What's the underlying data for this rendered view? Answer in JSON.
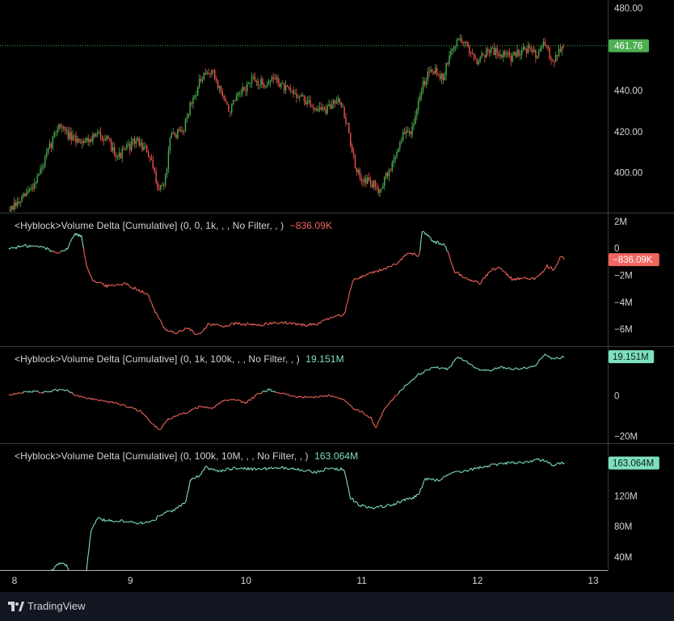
{
  "chart_data": [
    {
      "id": "price",
      "type": "candlestick",
      "title": "",
      "ylim": [
        381,
        484
      ],
      "yticks": [
        400,
        420,
        440,
        460,
        480
      ],
      "ytick_labels": [
        "400.00",
        "420.00",
        "440.00",
        "",
        "480.00"
      ],
      "last_value": 461.76,
      "last_label": "461.76",
      "x_start": 7.95,
      "x_end": 12.75,
      "path": [
        [
          7.95,
          381
        ],
        [
          8.05,
          386
        ],
        [
          8.15,
          393
        ],
        [
          8.25,
          404
        ],
        [
          8.38,
          424
        ],
        [
          8.5,
          416
        ],
        [
          8.62,
          416
        ],
        [
          8.75,
          419
        ],
        [
          8.9,
          408
        ],
        [
          9.05,
          416
        ],
        [
          9.15,
          410
        ],
        [
          9.25,
          392
        ],
        [
          9.3,
          396
        ],
        [
          9.35,
          418
        ],
        [
          9.45,
          420
        ],
        [
          9.5,
          430
        ],
        [
          9.6,
          444
        ],
        [
          9.7,
          450
        ],
        [
          9.78,
          440
        ],
        [
          9.85,
          430
        ],
        [
          9.95,
          438
        ],
        [
          10.05,
          445
        ],
        [
          10.15,
          443
        ],
        [
          10.25,
          446
        ],
        [
          10.35,
          440
        ],
        [
          10.45,
          438
        ],
        [
          10.55,
          433
        ],
        [
          10.7,
          430
        ],
        [
          10.8,
          438
        ],
        [
          10.88,
          422
        ],
        [
          10.95,
          400
        ],
        [
          11.05,
          396
        ],
        [
          11.15,
          392
        ],
        [
          11.25,
          402
        ],
        [
          11.35,
          418
        ],
        [
          11.45,
          422
        ],
        [
          11.52,
          442
        ],
        [
          11.6,
          452
        ],
        [
          11.7,
          446
        ],
        [
          11.78,
          460
        ],
        [
          11.85,
          466
        ],
        [
          11.9,
          462
        ],
        [
          12.0,
          455
        ],
        [
          12.1,
          460
        ],
        [
          12.2,
          458
        ],
        [
          12.3,
          456
        ],
        [
          12.4,
          461
        ],
        [
          12.5,
          458
        ],
        [
          12.58,
          462
        ],
        [
          12.65,
          455
        ],
        [
          12.72,
          460
        ],
        [
          12.75,
          461.76
        ]
      ],
      "up_color": "#4caf50",
      "down_color": "#ef5350"
    },
    {
      "id": "vd1",
      "type": "line",
      "legend": "<Hyblock>Volume Delta [Cumulative] (0, 0, 1k, , , No Filter, , )",
      "value_label": "−836.09K",
      "value_color": "#f2645e",
      "last_value": -0.836,
      "ylim": [
        -7.2,
        2.6
      ],
      "yticks": [
        2,
        0,
        -2,
        -4,
        -6
      ],
      "ytick_labels": [
        "2M",
        "0",
        "−2M",
        "−4M",
        "−6M"
      ],
      "baseline": -0.2,
      "x_start": 7.95,
      "x_end": 12.75,
      "path": [
        [
          7.95,
          0.0
        ],
        [
          8.1,
          0.2
        ],
        [
          8.25,
          0.1
        ],
        [
          8.35,
          -0.3
        ],
        [
          8.45,
          -0.1
        ],
        [
          8.52,
          1.1
        ],
        [
          8.58,
          0.9
        ],
        [
          8.62,
          -1.2
        ],
        [
          8.68,
          -2.4
        ],
        [
          8.8,
          -2.8
        ],
        [
          8.95,
          -2.6
        ],
        [
          9.05,
          -3.0
        ],
        [
          9.15,
          -3.4
        ],
        [
          9.22,
          -4.8
        ],
        [
          9.3,
          -6.0
        ],
        [
          9.4,
          -6.3
        ],
        [
          9.5,
          -5.9
        ],
        [
          9.58,
          -6.5
        ],
        [
          9.68,
          -5.6
        ],
        [
          9.8,
          -5.8
        ],
        [
          9.9,
          -5.6
        ],
        [
          10.1,
          -5.7
        ],
        [
          10.3,
          -5.5
        ],
        [
          10.5,
          -5.7
        ],
        [
          10.62,
          -5.6
        ],
        [
          10.75,
          -5.1
        ],
        [
          10.85,
          -4.9
        ],
        [
          10.92,
          -2.4
        ],
        [
          11.05,
          -1.9
        ],
        [
          11.2,
          -1.5
        ],
        [
          11.3,
          -1.2
        ],
        [
          11.4,
          -0.3
        ],
        [
          11.5,
          -0.6
        ],
        [
          11.52,
          1.4
        ],
        [
          11.62,
          0.5
        ],
        [
          11.72,
          0.3
        ],
        [
          11.8,
          -1.7
        ],
        [
          11.9,
          -2.2
        ],
        [
          12.02,
          -2.6
        ],
        [
          12.12,
          -1.6
        ],
        [
          12.2,
          -1.4
        ],
        [
          12.3,
          -2.3
        ],
        [
          12.4,
          -2.2
        ],
        [
          12.5,
          -2.3
        ],
        [
          12.6,
          -1.3
        ],
        [
          12.66,
          -1.6
        ],
        [
          12.72,
          -0.6
        ],
        [
          12.75,
          -0.836
        ]
      ],
      "pos_color": "#7ee0c0",
      "neg_color": "#f2645e"
    },
    {
      "id": "vd2",
      "type": "line",
      "legend": "<Hyblock>Volume Delta [Cumulative] (0, 1k, 100k, , , No Filter, , )",
      "value_label": "19.151M",
      "value_color": "#7ee0c0",
      "last_value": 19.151,
      "ylim": [
        -23,
        24
      ],
      "yticks": [
        0,
        -20
      ],
      "ytick_labels": [
        "0",
        "−20M"
      ],
      "baseline": 1.5,
      "x_start": 7.95,
      "x_end": 12.75,
      "path": [
        [
          7.95,
          0.5
        ],
        [
          8.05,
          1.5
        ],
        [
          8.15,
          2.0
        ],
        [
          8.25,
          1.5
        ],
        [
          8.35,
          2.5
        ],
        [
          8.45,
          3.0
        ],
        [
          8.52,
          0.5
        ],
        [
          8.6,
          -1.0
        ],
        [
          8.7,
          -2.0
        ],
        [
          8.8,
          -3.0
        ],
        [
          8.9,
          -4.0
        ],
        [
          9.0,
          -6.0
        ],
        [
          9.1,
          -8.0
        ],
        [
          9.18,
          -13.0
        ],
        [
          9.25,
          -17.0
        ],
        [
          9.32,
          -12.0
        ],
        [
          9.4,
          -10.0
        ],
        [
          9.5,
          -8.0
        ],
        [
          9.6,
          -5.5
        ],
        [
          9.7,
          -6.5
        ],
        [
          9.8,
          -2.5
        ],
        [
          9.9,
          -2.0
        ],
        [
          10.0,
          -3.5
        ],
        [
          10.1,
          0.5
        ],
        [
          10.2,
          3.0
        ],
        [
          10.3,
          1.0
        ],
        [
          10.45,
          -0.5
        ],
        [
          10.55,
          -1.0
        ],
        [
          10.65,
          -0.5
        ],
        [
          10.75,
          0.0
        ],
        [
          10.85,
          -2.0
        ],
        [
          10.92,
          -6.0
        ],
        [
          11.0,
          -8.0
        ],
        [
          11.08,
          -11.0
        ],
        [
          11.12,
          -16.0
        ],
        [
          11.2,
          -6.0
        ],
        [
          11.28,
          -1.0
        ],
        [
          11.38,
          5.0
        ],
        [
          11.48,
          10.0
        ],
        [
          11.55,
          12.0
        ],
        [
          11.62,
          14.0
        ],
        [
          11.75,
          13.0
        ],
        [
          11.82,
          19.0
        ],
        [
          11.9,
          17.0
        ],
        [
          12.0,
          13.0
        ],
        [
          12.1,
          12.5
        ],
        [
          12.2,
          14.0
        ],
        [
          12.3,
          13.0
        ],
        [
          12.4,
          13.5
        ],
        [
          12.5,
          14.5
        ],
        [
          12.58,
          20.5
        ],
        [
          12.65,
          18.0
        ],
        [
          12.75,
          19.151
        ]
      ],
      "pos_color": "#7ee0c0",
      "neg_color": "#f2645e"
    },
    {
      "id": "vd3",
      "type": "line",
      "legend": "<Hyblock>Volume Delta [Cumulative] (0, 100k, 10M, , , No Filter, , )",
      "value_label": "163.064M",
      "value_color": "#7ee0c0",
      "last_value": 163.064,
      "ylim": [
        23,
        188
      ],
      "yticks": [
        120,
        80,
        40
      ],
      "ytick_labels": [
        "120M",
        "80M",
        "40M"
      ],
      "x_start": 7.95,
      "x_end": 12.75,
      "path": [
        [
          7.95,
          20
        ],
        [
          8.3,
          20
        ],
        [
          8.38,
          32
        ],
        [
          8.45,
          30
        ],
        [
          8.48,
          20
        ],
        [
          8.62,
          20
        ],
        [
          8.66,
          75
        ],
        [
          8.72,
          90
        ],
        [
          8.8,
          88
        ],
        [
          8.95,
          87
        ],
        [
          9.1,
          84
        ],
        [
          9.2,
          88
        ],
        [
          9.28,
          97
        ],
        [
          9.38,
          101
        ],
        [
          9.48,
          112
        ],
        [
          9.52,
          142
        ],
        [
          9.6,
          147
        ],
        [
          9.65,
          158
        ],
        [
          9.75,
          152
        ],
        [
          9.9,
          156
        ],
        [
          10.1,
          155
        ],
        [
          10.3,
          157
        ],
        [
          10.5,
          154
        ],
        [
          10.6,
          151
        ],
        [
          10.7,
          155
        ],
        [
          10.85,
          155
        ],
        [
          10.9,
          118
        ],
        [
          10.98,
          108
        ],
        [
          11.1,
          104
        ],
        [
          11.25,
          108
        ],
        [
          11.38,
          115
        ],
        [
          11.45,
          118
        ],
        [
          11.5,
          125
        ],
        [
          11.55,
          142
        ],
        [
          11.65,
          140
        ],
        [
          11.8,
          150
        ],
        [
          11.95,
          155
        ],
        [
          12.1,
          160
        ],
        [
          12.25,
          163
        ],
        [
          12.4,
          163
        ],
        [
          12.5,
          167
        ],
        [
          12.58,
          167
        ],
        [
          12.65,
          160
        ],
        [
          12.7,
          162
        ],
        [
          12.75,
          163.064
        ]
      ],
      "line_color": "#7ee0c0"
    }
  ],
  "x_axis": {
    "ticks": [
      8,
      9,
      10,
      11,
      12,
      13
    ],
    "tick_labels": [
      "8",
      "9",
      "10",
      "11",
      "12",
      "13"
    ]
  },
  "brand": {
    "name": "TradingView"
  },
  "colors": {
    "price_badge_bg": "#4caf50",
    "price_line": "#4caf50",
    "text": "#d1d4dc",
    "separator": "#363a45",
    "footer_bg": "#131722"
  }
}
